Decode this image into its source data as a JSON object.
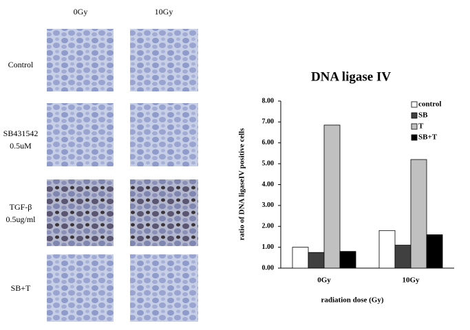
{
  "image_grid": {
    "columns": [
      "0Gy",
      "10Gy"
    ],
    "rows": [
      [
        "Control"
      ],
      [
        "SB431542",
        "0.5uM"
      ],
      [
        "TGF-β",
        "0.5ug/ml"
      ],
      [
        "SB+T"
      ]
    ]
  },
  "chart_data": {
    "type": "bar",
    "title": "DNA ligase IV",
    "x_label": "radiation dose (Gy)",
    "y_label": "ratio of DNA ligaseIV positive cells",
    "categories": [
      "0Gy",
      "10Gy"
    ],
    "series": [
      {
        "name": "control",
        "color": "#ffffff",
        "values": [
          1.0,
          1.8
        ]
      },
      {
        "name": "SB",
        "color": "#404040",
        "values": [
          0.75,
          1.1
        ]
      },
      {
        "name": "T",
        "color": "#c0c0c0",
        "values": [
          6.85,
          5.2
        ]
      },
      {
        "name": "SB+T",
        "color": "#000000",
        "values": [
          0.8,
          1.6
        ]
      }
    ],
    "ylim": [
      0,
      8
    ],
    "yticks": [
      {
        "value": 0,
        "label": "0.00"
      },
      {
        "value": 1,
        "label": "1.00"
      },
      {
        "value": 2,
        "label": "2.00"
      },
      {
        "value": 3,
        "label": "3.00"
      },
      {
        "value": 4,
        "label": "4.00"
      },
      {
        "value": 5,
        "label": "5.00"
      },
      {
        "value": 6,
        "label": "6.00"
      },
      {
        "value": 7,
        "label": "7.00"
      },
      {
        "value": 8,
        "label": "8.00"
      }
    ],
    "legend": "top-right",
    "grid": false
  }
}
